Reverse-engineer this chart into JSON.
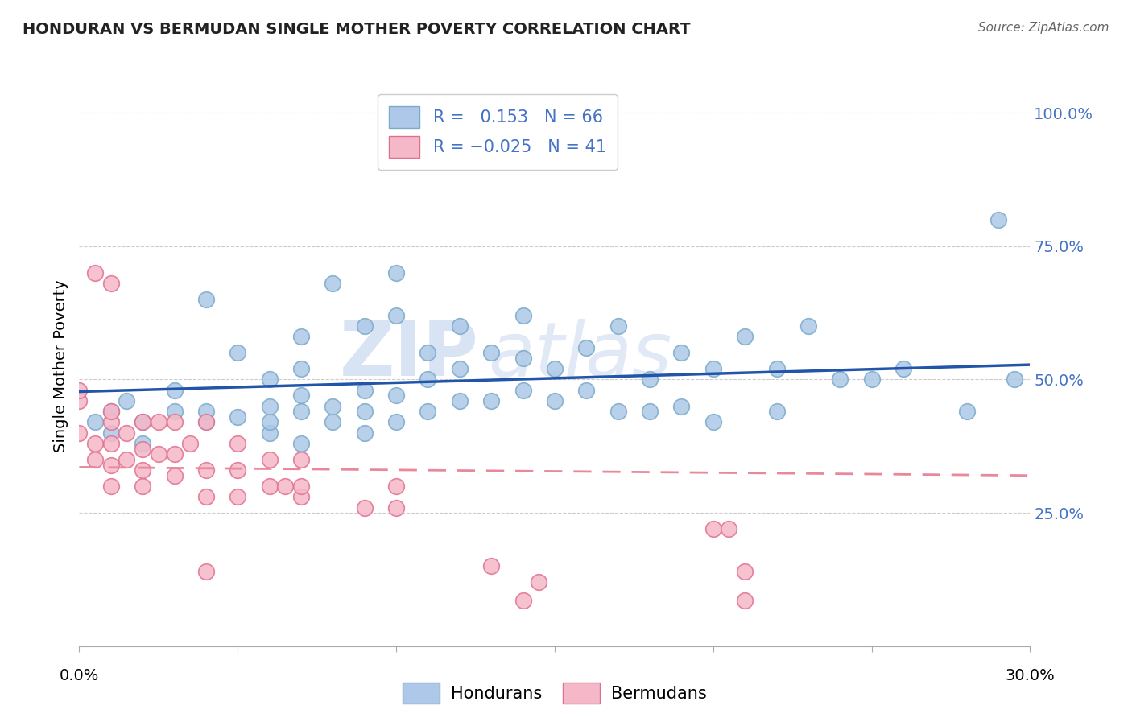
{
  "title": "HONDURAN VS BERMUDAN SINGLE MOTHER POVERTY CORRELATION CHART",
  "source": "Source: ZipAtlas.com",
  "ylabel": "Single Mother Poverty",
  "xlim": [
    0.0,
    0.3
  ],
  "ylim": [
    0.0,
    1.05
  ],
  "honduran_color": "#adc8e8",
  "honduran_edge": "#7aaac8",
  "bermudan_color": "#f5b8c8",
  "bermudan_edge": "#e07090",
  "honduran_line_color": "#2255aa",
  "bermudan_line_color": "#e8889a",
  "tick_color": "#4472c4",
  "R_honduran": 0.153,
  "N_honduran": 66,
  "R_bermudan": -0.025,
  "N_bermudan": 41,
  "watermark_zip": "ZIP",
  "watermark_atlas": "atlas",
  "background_color": "#ffffff",
  "grid_color": "#cccccc",
  "honduran_x": [
    0.005,
    0.01,
    0.01,
    0.015,
    0.02,
    0.02,
    0.03,
    0.03,
    0.04,
    0.04,
    0.04,
    0.05,
    0.05,
    0.06,
    0.06,
    0.06,
    0.06,
    0.07,
    0.07,
    0.07,
    0.07,
    0.07,
    0.08,
    0.08,
    0.08,
    0.09,
    0.09,
    0.09,
    0.09,
    0.1,
    0.1,
    0.1,
    0.1,
    0.11,
    0.11,
    0.11,
    0.12,
    0.12,
    0.12,
    0.13,
    0.13,
    0.14,
    0.14,
    0.14,
    0.15,
    0.15,
    0.16,
    0.16,
    0.17,
    0.17,
    0.18,
    0.18,
    0.19,
    0.19,
    0.2,
    0.2,
    0.21,
    0.22,
    0.22,
    0.23,
    0.24,
    0.25,
    0.26,
    0.28,
    0.29,
    0.295
  ],
  "honduran_y": [
    0.42,
    0.4,
    0.44,
    0.46,
    0.38,
    0.42,
    0.44,
    0.48,
    0.42,
    0.44,
    0.65,
    0.43,
    0.55,
    0.4,
    0.42,
    0.45,
    0.5,
    0.38,
    0.44,
    0.47,
    0.52,
    0.58,
    0.42,
    0.45,
    0.68,
    0.4,
    0.44,
    0.48,
    0.6,
    0.42,
    0.47,
    0.62,
    0.7,
    0.44,
    0.5,
    0.55,
    0.46,
    0.52,
    0.6,
    0.46,
    0.55,
    0.48,
    0.54,
    0.62,
    0.46,
    0.52,
    0.48,
    0.56,
    0.44,
    0.6,
    0.44,
    0.5,
    0.45,
    0.55,
    0.42,
    0.52,
    0.58,
    0.44,
    0.52,
    0.6,
    0.5,
    0.5,
    0.52,
    0.44,
    0.8,
    0.5
  ],
  "bermudan_x": [
    0.0,
    0.0,
    0.0,
    0.005,
    0.005,
    0.01,
    0.01,
    0.01,
    0.01,
    0.01,
    0.015,
    0.015,
    0.02,
    0.02,
    0.02,
    0.02,
    0.025,
    0.025,
    0.03,
    0.03,
    0.03,
    0.035,
    0.04,
    0.04,
    0.04,
    0.05,
    0.05,
    0.05,
    0.06,
    0.06,
    0.065,
    0.07,
    0.07,
    0.07,
    0.09,
    0.1,
    0.1,
    0.13,
    0.145,
    0.2,
    0.21
  ],
  "bermudan_y": [
    0.4,
    0.46,
    0.48,
    0.35,
    0.38,
    0.3,
    0.34,
    0.38,
    0.42,
    0.44,
    0.35,
    0.4,
    0.3,
    0.33,
    0.37,
    0.42,
    0.36,
    0.42,
    0.32,
    0.36,
    0.42,
    0.38,
    0.28,
    0.33,
    0.42,
    0.28,
    0.33,
    0.38,
    0.3,
    0.35,
    0.3,
    0.28,
    0.3,
    0.35,
    0.26,
    0.26,
    0.3,
    0.15,
    0.12,
    0.22,
    0.14
  ],
  "bermudan_outliers_x": [
    0.005,
    0.01,
    0.04,
    0.14,
    0.21,
    0.205
  ],
  "bermudan_outliers_y": [
    0.7,
    0.68,
    0.14,
    0.085,
    0.085,
    0.22
  ]
}
